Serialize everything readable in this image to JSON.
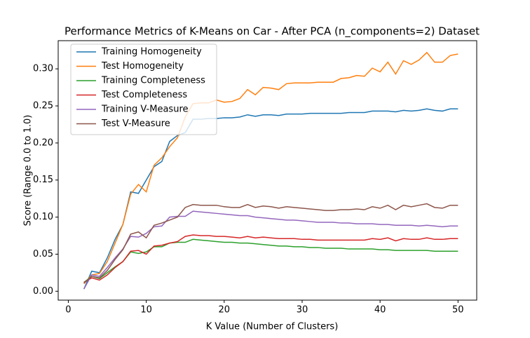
{
  "chart_data": {
    "type": "line",
    "title": "Performance Metrics of K-Means on Car - After PCA (n_components=2) Dataset",
    "x_label": "K Value (Number of Clusters)",
    "y_label": "Score (Range 0.0 to 1.0)",
    "x": [
      2,
      3,
      4,
      5,
      6,
      7,
      8,
      9,
      10,
      11,
      12,
      13,
      14,
      15,
      16,
      17,
      18,
      19,
      20,
      21,
      22,
      23,
      24,
      25,
      26,
      27,
      28,
      29,
      30,
      31,
      32,
      33,
      34,
      35,
      36,
      37,
      38,
      39,
      40,
      41,
      42,
      43,
      44,
      45,
      46,
      47,
      48,
      49,
      50
    ],
    "series": [
      {
        "name": "Training Homogeneity",
        "color": "#1f77b4",
        "values": [
          0.003,
          0.027,
          0.025,
          0.045,
          0.07,
          0.09,
          0.134,
          0.132,
          0.15,
          0.168,
          0.175,
          0.202,
          0.21,
          0.214,
          0.232,
          0.232,
          0.233,
          0.233,
          0.234,
          0.234,
          0.235,
          0.238,
          0.236,
          0.238,
          0.238,
          0.237,
          0.239,
          0.239,
          0.239,
          0.24,
          0.24,
          0.24,
          0.24,
          0.24,
          0.241,
          0.241,
          0.241,
          0.243,
          0.243,
          0.243,
          0.242,
          0.244,
          0.243,
          0.244,
          0.246,
          0.244,
          0.243,
          0.246,
          0.246
        ]
      },
      {
        "name": "Test Homogeneity",
        "color": "#ff7f0e",
        "values": [
          0.01,
          0.022,
          0.024,
          0.04,
          0.065,
          0.09,
          0.131,
          0.144,
          0.134,
          0.17,
          0.18,
          0.195,
          0.207,
          0.235,
          0.253,
          0.254,
          0.254,
          0.258,
          0.255,
          0.256,
          0.26,
          0.272,
          0.265,
          0.275,
          0.274,
          0.272,
          0.28,
          0.281,
          0.281,
          0.281,
          0.282,
          0.282,
          0.282,
          0.287,
          0.288,
          0.291,
          0.29,
          0.301,
          0.296,
          0.309,
          0.293,
          0.311,
          0.306,
          0.312,
          0.322,
          0.309,
          0.309,
          0.318,
          0.32
        ]
      },
      {
        "name": "Training Completeness",
        "color": "#2ca02c",
        "values": [
          0.012,
          0.02,
          0.017,
          0.025,
          0.033,
          0.04,
          0.053,
          0.051,
          0.053,
          0.06,
          0.06,
          0.065,
          0.066,
          0.066,
          0.07,
          0.069,
          0.068,
          0.067,
          0.066,
          0.066,
          0.065,
          0.065,
          0.064,
          0.063,
          0.062,
          0.061,
          0.061,
          0.06,
          0.06,
          0.059,
          0.059,
          0.058,
          0.058,
          0.058,
          0.057,
          0.057,
          0.057,
          0.057,
          0.056,
          0.056,
          0.055,
          0.055,
          0.055,
          0.055,
          0.055,
          0.054,
          0.054,
          0.054,
          0.054
        ]
      },
      {
        "name": "Test Completeness",
        "color": "#d62728",
        "values": [
          0.012,
          0.018,
          0.015,
          0.022,
          0.032,
          0.04,
          0.054,
          0.055,
          0.05,
          0.061,
          0.062,
          0.065,
          0.067,
          0.074,
          0.076,
          0.075,
          0.075,
          0.074,
          0.074,
          0.073,
          0.072,
          0.074,
          0.072,
          0.073,
          0.072,
          0.071,
          0.071,
          0.071,
          0.07,
          0.07,
          0.069,
          0.069,
          0.069,
          0.069,
          0.069,
          0.069,
          0.069,
          0.071,
          0.07,
          0.072,
          0.068,
          0.071,
          0.07,
          0.07,
          0.072,
          0.07,
          0.07,
          0.071,
          0.071
        ]
      },
      {
        "name": "Training V-Measure",
        "color": "#9467bd",
        "values": [
          0.003,
          0.022,
          0.02,
          0.032,
          0.045,
          0.057,
          0.074,
          0.073,
          0.078,
          0.087,
          0.088,
          0.1,
          0.101,
          0.101,
          0.108,
          0.107,
          0.106,
          0.105,
          0.104,
          0.103,
          0.102,
          0.102,
          0.1,
          0.099,
          0.098,
          0.097,
          0.096,
          0.096,
          0.095,
          0.094,
          0.093,
          0.093,
          0.093,
          0.092,
          0.092,
          0.091,
          0.091,
          0.091,
          0.09,
          0.09,
          0.089,
          0.089,
          0.089,
          0.088,
          0.089,
          0.088,
          0.087,
          0.088,
          0.088
        ]
      },
      {
        "name": "Test V-Measure",
        "color": "#8c564b",
        "values": [
          0.011,
          0.02,
          0.018,
          0.028,
          0.043,
          0.056,
          0.077,
          0.08,
          0.072,
          0.089,
          0.092,
          0.096,
          0.1,
          0.113,
          0.117,
          0.116,
          0.116,
          0.116,
          0.114,
          0.113,
          0.113,
          0.117,
          0.113,
          0.115,
          0.114,
          0.112,
          0.114,
          0.113,
          0.112,
          0.111,
          0.11,
          0.109,
          0.109,
          0.11,
          0.11,
          0.111,
          0.11,
          0.114,
          0.112,
          0.116,
          0.11,
          0.116,
          0.114,
          0.116,
          0.118,
          0.113,
          0.112,
          0.116,
          0.116
        ]
      }
    ],
    "xlim": [
      -1.3,
      52.4
    ],
    "ylim": [
      -0.012,
      0.338
    ],
    "xticks": [
      0,
      10,
      20,
      30,
      40,
      50
    ],
    "yticks": [
      {
        "value": 0,
        "label": "0.00"
      },
      0.05,
      {
        "value": 0.1,
        "label": "0.10"
      },
      0.15,
      {
        "value": 0.2,
        "label": "0.20"
      },
      0.25,
      {
        "value": 0.3,
        "label": "0.30"
      }
    ],
    "legend": "upper left",
    "grid": false
  }
}
